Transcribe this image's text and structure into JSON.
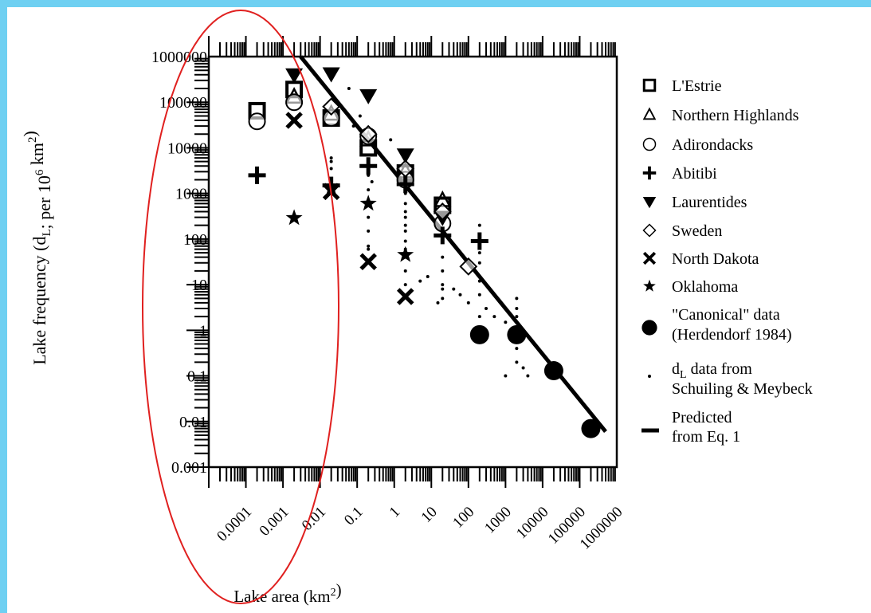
{
  "chart_data": {
    "type": "scatter",
    "x_scale": "log",
    "y_scale": "log",
    "xlabel": "Lake area (km²)",
    "ylabel": "Lake frequency (d_L; per 10^6 km²)",
    "ylabel_parts": {
      "a": "Lake frequency (d",
      "sub": "L",
      "b": "; per 10",
      "sup": "6",
      "c": " km",
      "sup2": "2",
      "d": ")"
    },
    "xlabel_parts": {
      "a": "Lake area (km",
      "sup": "2",
      "b": ")"
    },
    "xlim": [
      1e-05,
      1000000
    ],
    "ylim": [
      0.001,
      1000000
    ],
    "x_ticks": [
      {
        "value": 0.0001,
        "label": "0.0001"
      },
      {
        "value": 0.001,
        "label": "0.001"
      },
      {
        "value": 0.01,
        "label": "0.01"
      },
      {
        "value": 0.1,
        "label": "0.1"
      },
      {
        "value": 1,
        "label": "1"
      },
      {
        "value": 10,
        "label": "10"
      },
      {
        "value": 100,
        "label": "100"
      },
      {
        "value": 1000,
        "label": "1000"
      },
      {
        "value": 10000,
        "label": "10000"
      },
      {
        "value": 100000,
        "label": "100000"
      },
      {
        "value": 1000000,
        "label": "1000000"
      }
    ],
    "y_ticks": [
      {
        "value": 0.001,
        "label": "0.001"
      },
      {
        "value": 0.01,
        "label": "0.01"
      },
      {
        "value": 0.1,
        "label": "0.1"
      },
      {
        "value": 1,
        "label": "1"
      },
      {
        "value": 10,
        "label": "10"
      },
      {
        "value": 100,
        "label": "100"
      },
      {
        "value": 1000,
        "label": "1000"
      },
      {
        "value": 10000,
        "label": "10000"
      },
      {
        "value": 100000,
        "label": "100000"
      },
      {
        "value": 1000000,
        "label": "1000000"
      }
    ],
    "series": [
      {
        "name": "L'Estrie",
        "marker": "square-open",
        "points": [
          [
            0.0002,
            65000
          ],
          [
            0.002,
            190000
          ],
          [
            0.02,
            45000
          ],
          [
            0.2,
            10000
          ],
          [
            2,
            2800
          ],
          [
            20,
            550
          ]
        ]
      },
      {
        "name": "Northern Highlands",
        "marker": "triangle-open",
        "points": [
          [
            0.002,
            130000
          ],
          [
            0.02,
            55000
          ],
          [
            0.2,
            15000
          ],
          [
            2,
            3000
          ],
          [
            20,
            700
          ]
        ]
      },
      {
        "name": "Adirondacks",
        "marker": "circle-open",
        "points": [
          [
            0.0002,
            38000
          ],
          [
            0.002,
            100000
          ],
          [
            0.02,
            45000
          ],
          [
            0.2,
            18000
          ],
          [
            2,
            2000
          ],
          [
            20,
            220
          ]
        ]
      },
      {
        "name": "Abitibi",
        "marker": "plus",
        "points": [
          [
            0.0002,
            2500
          ],
          [
            0.02,
            1500
          ],
          [
            0.2,
            4000
          ],
          [
            2,
            1600
          ],
          [
            20,
            120
          ],
          [
            200,
            90
          ]
        ]
      },
      {
        "name": "Laurentides",
        "marker": "triangle-down-filled",
        "points": [
          [
            0.002,
            400000
          ],
          [
            0.02,
            420000
          ],
          [
            0.2,
            140000
          ],
          [
            2,
            7000
          ],
          [
            20,
            300
          ]
        ]
      },
      {
        "name": "Sweden",
        "marker": "diamond-open",
        "points": [
          [
            0.02,
            80000
          ],
          [
            0.2,
            20000
          ],
          [
            2,
            3500
          ],
          [
            20,
            400
          ],
          [
            100,
            25
          ]
        ]
      },
      {
        "name": "North Dakota",
        "marker": "x",
        "points": [
          [
            0.002,
            40000
          ],
          [
            0.02,
            1100
          ],
          [
            0.2,
            32
          ],
          [
            2,
            5.5
          ]
        ]
      },
      {
        "name": "Oklahoma",
        "marker": "star",
        "points": [
          [
            0.002,
            290
          ],
          [
            0.02,
            1300
          ],
          [
            0.2,
            600
          ],
          [
            2,
            45
          ]
        ]
      },
      {
        "name": "\"Canonical\" data (Herdendorf 1984)",
        "marker": "circle-filled",
        "points": [
          [
            200,
            0.8
          ],
          [
            2000,
            0.8
          ],
          [
            20000,
            0.13
          ],
          [
            200000,
            0.007
          ]
        ]
      },
      {
        "name": "d_L data from Schuiling & Meybeck",
        "marker": "dot",
        "points": [
          [
            0.02,
            5000
          ],
          [
            0.02,
            3500
          ],
          [
            0.02,
            6000
          ],
          [
            0.06,
            200000
          ],
          [
            0.08,
            30000
          ],
          [
            0.12,
            50000
          ],
          [
            0.2,
            3000
          ],
          [
            0.2,
            600
          ],
          [
            0.2,
            300
          ],
          [
            0.2,
            150
          ],
          [
            0.2,
            70
          ],
          [
            0.2,
            1200
          ],
          [
            0.2,
            2500
          ],
          [
            0.2,
            60
          ],
          [
            0.25,
            1800
          ],
          [
            0.8,
            15000
          ],
          [
            2,
            150
          ],
          [
            2,
            300
          ],
          [
            2,
            600
          ],
          [
            2,
            1000
          ],
          [
            2,
            60
          ],
          [
            2,
            40
          ],
          [
            2,
            20
          ],
          [
            2,
            10
          ],
          [
            2,
            90
          ],
          [
            2,
            200
          ],
          [
            2,
            400
          ],
          [
            5,
            12
          ],
          [
            8,
            15
          ],
          [
            15,
            4
          ],
          [
            20,
            40
          ],
          [
            20,
            20
          ],
          [
            20,
            8
          ],
          [
            20,
            10
          ],
          [
            20,
            5
          ],
          [
            20,
            150
          ],
          [
            40,
            8
          ],
          [
            60,
            6
          ],
          [
            100,
            4
          ],
          [
            200,
            2
          ],
          [
            200,
            6
          ],
          [
            200,
            12
          ],
          [
            200,
            15
          ],
          [
            200,
            30
          ],
          [
            200,
            50
          ],
          [
            200,
            100
          ],
          [
            200,
            200
          ],
          [
            300,
            3
          ],
          [
            500,
            2
          ],
          [
            1000,
            0.1
          ],
          [
            1000,
            1.5
          ],
          [
            2000,
            5
          ],
          [
            2000,
            2
          ],
          [
            2000,
            3
          ],
          [
            2000,
            0.4
          ],
          [
            2000,
            0.2
          ],
          [
            3000,
            0.15
          ],
          [
            4000,
            0.1
          ]
        ]
      }
    ],
    "legend_extra": [
      {
        "name": "Predicted from Eq. 1",
        "marker": "line"
      }
    ],
    "legend_lines": {
      "L'Estrie": [
        "L'Estrie"
      ],
      "Northern Highlands": [
        "Northern Highlands"
      ],
      "Adirondacks": [
        "Adirondacks"
      ],
      "Abitibi": [
        "Abitibi"
      ],
      "Laurentides": [
        "Laurentides"
      ],
      "Sweden": [
        "Sweden"
      ],
      "North Dakota": [
        "North Dakota"
      ],
      "Oklahoma": [
        "Oklahoma"
      ],
      "canonical": [
        "\"Canonical\" data",
        "(Herdendorf 1984)"
      ],
      "schuiling": [
        "data from",
        "Schuiling & Meybeck"
      ],
      "schuiling_prefix": "d",
      "schuiling_sub": "L",
      "predicted": [
        "Predicted",
        "from Eq. 1"
      ]
    },
    "predicted_line": {
      "x": [
        0.003,
        500000
      ],
      "y": [
        1000000,
        0.006
      ]
    },
    "legend_position": "right",
    "grid": false
  },
  "colors": {
    "background": "#6fd0f2",
    "panel": "#ffffff",
    "ink": "#000000",
    "highlight_ellipse": "#e0201f"
  },
  "annotation": {
    "shape": "ellipse",
    "covers_x_range": [
      3e-05,
      0.1
    ]
  }
}
